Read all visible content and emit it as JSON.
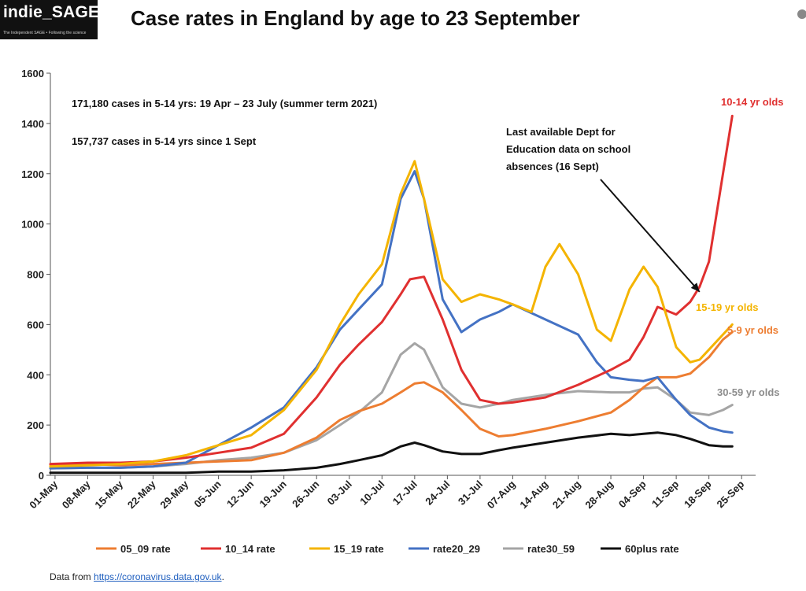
{
  "logo": {
    "name": "indie_SAGE",
    "tagline": "The Independent SAGE • Following the science"
  },
  "title": "Case rates in England by age to 23 September",
  "footer": {
    "prefix": "Data from ",
    "link": "https://coronavirus.data.gov.uk",
    "suffix": "."
  },
  "chart_data": {
    "type": "line",
    "title": "Case rates in England by age to 23 September",
    "ylim": [
      0,
      1600
    ],
    "yticks": [
      0,
      200,
      400,
      600,
      800,
      1000,
      1200,
      1400,
      1600
    ],
    "xlim": [
      "2021-04-30",
      "2021-09-28"
    ],
    "xticks": [
      "01-May",
      "08-May",
      "15-May",
      "22-May",
      "29-May",
      "05-Jun",
      "12-Jun",
      "19-Jun",
      "26-Jun",
      "03-Jul",
      "10-Jul",
      "17-Jul",
      "24-Jul",
      "31-Jul",
      "07-Aug",
      "14-Aug",
      "21-Aug",
      "28-Aug",
      "04-Sep",
      "11-Sep",
      "18-Sep",
      "25-Sep"
    ],
    "xtick_dates": [
      "2021-05-01",
      "2021-05-08",
      "2021-05-15",
      "2021-05-22",
      "2021-05-29",
      "2021-06-05",
      "2021-06-12",
      "2021-06-19",
      "2021-06-26",
      "2021-07-03",
      "2021-07-10",
      "2021-07-17",
      "2021-07-24",
      "2021-07-31",
      "2021-08-07",
      "2021-08-14",
      "2021-08-21",
      "2021-08-28",
      "2021-09-04",
      "2021-09-11",
      "2021-09-18",
      "2021-09-25"
    ],
    "grid": false,
    "legend_position": "bottom",
    "series": [
      {
        "name": "05_09 rate",
        "color": "#ed7d31",
        "x": [
          "2021-04-30",
          "2021-05-08",
          "2021-05-15",
          "2021-05-22",
          "2021-05-29",
          "2021-06-05",
          "2021-06-12",
          "2021-06-19",
          "2021-06-26",
          "2021-07-01",
          "2021-07-05",
          "2021-07-10",
          "2021-07-14",
          "2021-07-17",
          "2021-07-19",
          "2021-07-23",
          "2021-07-27",
          "2021-07-31",
          "2021-08-04",
          "2021-08-07",
          "2021-08-14",
          "2021-08-21",
          "2021-08-28",
          "2021-09-01",
          "2021-09-04",
          "2021-09-07",
          "2021-09-11",
          "2021-09-14",
          "2021-09-18",
          "2021-09-21",
          "2021-09-23"
        ],
        "y": [
          42,
          45,
          40,
          45,
          50,
          55,
          60,
          90,
          150,
          220,
          255,
          285,
          330,
          365,
          370,
          330,
          260,
          185,
          155,
          160,
          185,
          215,
          250,
          300,
          350,
          390,
          390,
          405,
          470,
          540,
          570
        ]
      },
      {
        "name": "10_14 rate",
        "color": "#e03030",
        "x": [
          "2021-04-30",
          "2021-05-08",
          "2021-05-15",
          "2021-05-22",
          "2021-05-29",
          "2021-06-05",
          "2021-06-12",
          "2021-06-19",
          "2021-06-26",
          "2021-07-01",
          "2021-07-05",
          "2021-07-10",
          "2021-07-14",
          "2021-07-16",
          "2021-07-19",
          "2021-07-23",
          "2021-07-27",
          "2021-07-31",
          "2021-08-04",
          "2021-08-07",
          "2021-08-14",
          "2021-08-21",
          "2021-08-28",
          "2021-09-01",
          "2021-09-04",
          "2021-09-07",
          "2021-09-11",
          "2021-09-14",
          "2021-09-16",
          "2021-09-18",
          "2021-09-21",
          "2021-09-23"
        ],
        "y": [
          45,
          50,
          50,
          55,
          70,
          90,
          110,
          165,
          310,
          440,
          520,
          610,
          720,
          780,
          790,
          620,
          420,
          300,
          285,
          290,
          310,
          360,
          420,
          460,
          550,
          670,
          640,
          690,
          750,
          850,
          1200,
          1430
        ]
      },
      {
        "name": "15_19 rate",
        "color": "#f4b400",
        "x": [
          "2021-04-30",
          "2021-05-08",
          "2021-05-15",
          "2021-05-22",
          "2021-05-29",
          "2021-06-05",
          "2021-06-12",
          "2021-06-19",
          "2021-06-26",
          "2021-07-01",
          "2021-07-05",
          "2021-07-10",
          "2021-07-14",
          "2021-07-17",
          "2021-07-19",
          "2021-07-23",
          "2021-07-27",
          "2021-07-31",
          "2021-08-04",
          "2021-08-07",
          "2021-08-11",
          "2021-08-14",
          "2021-08-17",
          "2021-08-21",
          "2021-08-25",
          "2021-08-28",
          "2021-09-01",
          "2021-09-04",
          "2021-09-07",
          "2021-09-11",
          "2021-09-14",
          "2021-09-16",
          "2021-09-18",
          "2021-09-21",
          "2021-09-23"
        ],
        "y": [
          35,
          40,
          45,
          55,
          80,
          120,
          160,
          260,
          420,
          600,
          720,
          840,
          1120,
          1250,
          1100,
          780,
          690,
          720,
          700,
          680,
          650,
          830,
          920,
          800,
          580,
          535,
          740,
          830,
          750,
          510,
          450,
          460,
          500,
          560,
          600
        ]
      },
      {
        "name": "rate20_29",
        "color": "#4472c4",
        "x": [
          "2021-04-30",
          "2021-05-08",
          "2021-05-15",
          "2021-05-22",
          "2021-05-29",
          "2021-06-05",
          "2021-06-12",
          "2021-06-19",
          "2021-06-26",
          "2021-07-01",
          "2021-07-05",
          "2021-07-10",
          "2021-07-14",
          "2021-07-17",
          "2021-07-19",
          "2021-07-23",
          "2021-07-27",
          "2021-07-31",
          "2021-08-04",
          "2021-08-07",
          "2021-08-14",
          "2021-08-21",
          "2021-08-25",
          "2021-08-28",
          "2021-09-01",
          "2021-09-04",
          "2021-09-07",
          "2021-09-11",
          "2021-09-14",
          "2021-09-18",
          "2021-09-21",
          "2021-09-23"
        ],
        "y": [
          28,
          30,
          30,
          35,
          50,
          120,
          190,
          270,
          430,
          580,
          660,
          760,
          1100,
          1210,
          1100,
          700,
          570,
          620,
          650,
          680,
          620,
          560,
          450,
          390,
          380,
          375,
          390,
          300,
          240,
          190,
          175,
          170
        ]
      },
      {
        "name": "rate30_59",
        "color": "#a5a5a5",
        "x": [
          "2021-04-30",
          "2021-05-08",
          "2021-05-15",
          "2021-05-22",
          "2021-05-29",
          "2021-06-05",
          "2021-06-12",
          "2021-06-19",
          "2021-06-26",
          "2021-07-01",
          "2021-07-05",
          "2021-07-10",
          "2021-07-14",
          "2021-07-17",
          "2021-07-19",
          "2021-07-23",
          "2021-07-27",
          "2021-07-31",
          "2021-08-04",
          "2021-08-07",
          "2021-08-14",
          "2021-08-21",
          "2021-08-28",
          "2021-09-01",
          "2021-09-04",
          "2021-09-07",
          "2021-09-11",
          "2021-09-14",
          "2021-09-18",
          "2021-09-21",
          "2021-09-23"
        ],
        "y": [
          28,
          30,
          30,
          35,
          45,
          60,
          70,
          90,
          140,
          200,
          250,
          330,
          480,
          525,
          500,
          350,
          285,
          270,
          285,
          300,
          320,
          335,
          330,
          330,
          345,
          350,
          300,
          250,
          240,
          260,
          280
        ]
      },
      {
        "name": "60plus rate",
        "color": "#111111",
        "x": [
          "2021-04-30",
          "2021-05-08",
          "2021-05-15",
          "2021-05-22",
          "2021-05-29",
          "2021-06-05",
          "2021-06-12",
          "2021-06-19",
          "2021-06-26",
          "2021-07-01",
          "2021-07-05",
          "2021-07-10",
          "2021-07-14",
          "2021-07-17",
          "2021-07-19",
          "2021-07-23",
          "2021-07-27",
          "2021-07-31",
          "2021-08-04",
          "2021-08-07",
          "2021-08-14",
          "2021-08-21",
          "2021-08-28",
          "2021-09-01",
          "2021-09-04",
          "2021-09-07",
          "2021-09-11",
          "2021-09-14",
          "2021-09-18",
          "2021-09-21",
          "2021-09-23"
        ],
        "y": [
          10,
          10,
          10,
          10,
          10,
          15,
          15,
          20,
          30,
          45,
          60,
          80,
          115,
          130,
          120,
          95,
          85,
          85,
          100,
          110,
          130,
          150,
          165,
          160,
          165,
          170,
          160,
          145,
          120,
          115,
          115
        ]
      }
    ],
    "annotations": [
      {
        "text": "171,180 cases in 5-14 yrs: 19 Apr – 23 July (summer term 2021)"
      },
      {
        "text": "157,737 cases in 5-14 yrs since 1 Sept"
      },
      {
        "text_lines": [
          "Last available Dept for",
          "Education data on school",
          "absences (16 Sept)"
        ],
        "arrow_to": {
          "x": "2021-09-16",
          "y": 730
        }
      }
    ],
    "series_labels": [
      {
        "text": "10-14 yr olds",
        "color": "#e03030"
      },
      {
        "text": "15-19 yr olds",
        "color": "#f4b400"
      },
      {
        "text": "5-9 yr olds",
        "color": "#ed7d31"
      },
      {
        "text": "30-59 yr olds",
        "color": "#8c8c8c"
      }
    ]
  }
}
